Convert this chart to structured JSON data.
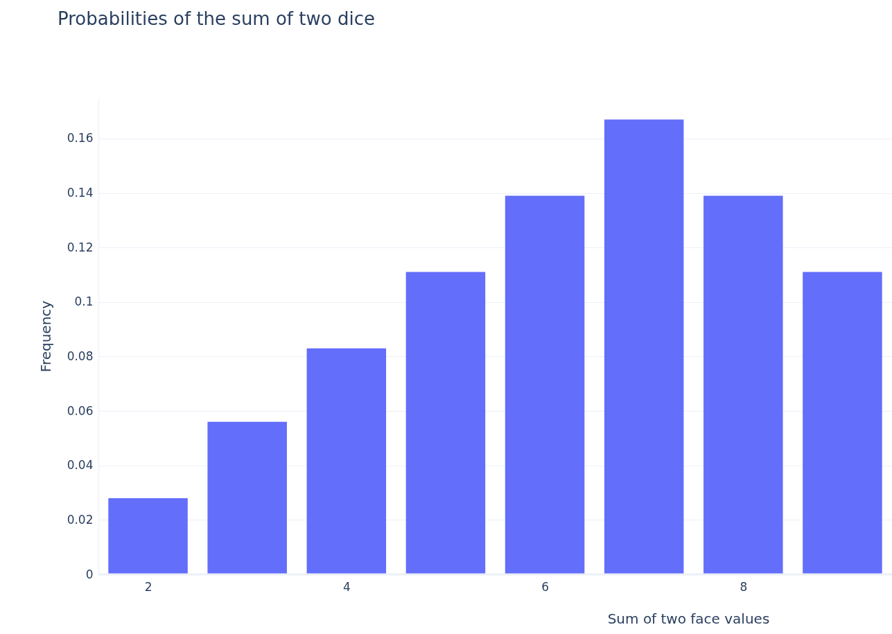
{
  "chart_data": {
    "type": "bar",
    "title": "Probabilities of the sum of two dice",
    "xlabel": "Sum of two face values",
    "ylabel": "Frequency",
    "x": [
      2,
      3,
      4,
      5,
      6,
      7,
      8,
      9
    ],
    "values": [
      0.028,
      0.056,
      0.083,
      0.111,
      0.139,
      0.167,
      0.139,
      0.111
    ],
    "color": "#636efa",
    "xlim": [
      1.5,
      9.5
    ],
    "xticks": [
      2,
      4,
      6,
      8
    ],
    "ylim": [
      0,
      0.175
    ],
    "yticks": [
      0,
      0.02,
      0.04,
      0.06,
      0.08,
      0.1,
      0.12,
      0.14,
      0.16
    ],
    "grid": "y"
  }
}
